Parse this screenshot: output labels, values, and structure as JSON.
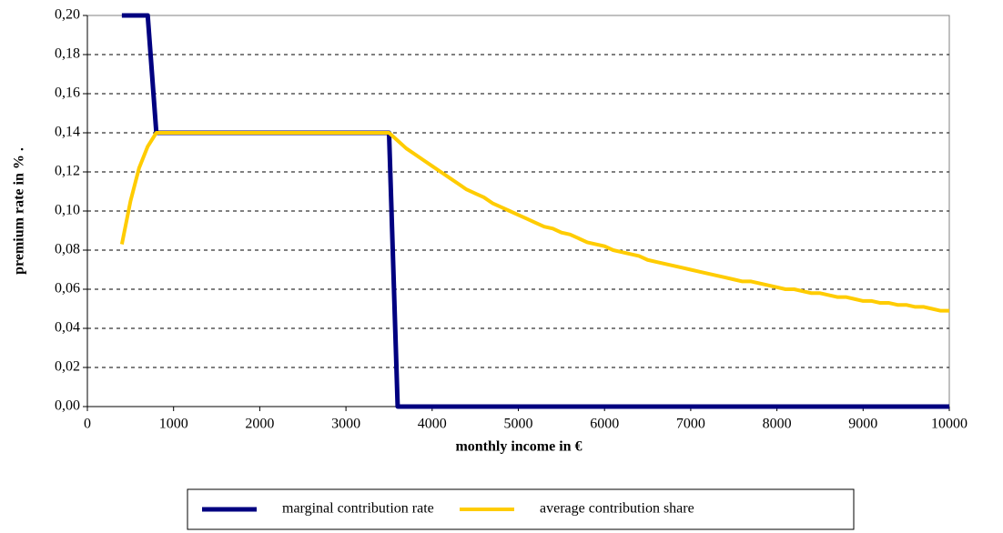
{
  "chart_data": {
    "type": "line",
    "xlabel": "monthly income in €",
    "ylabel": "premium rate in %   .",
    "x": [
      400,
      500,
      600,
      700,
      800,
      900,
      1000,
      1100,
      1200,
      1300,
      1400,
      1500,
      1600,
      1700,
      1800,
      1900,
      2000,
      2100,
      2200,
      2300,
      2400,
      2500,
      2600,
      2700,
      2800,
      2900,
      3000,
      3100,
      3200,
      3300,
      3400,
      3500,
      3600,
      3700,
      3800,
      3900,
      4000,
      4100,
      4200,
      4300,
      4400,
      4500,
      4600,
      4700,
      4800,
      4900,
      5000,
      5100,
      5200,
      5300,
      5400,
      5500,
      5600,
      5700,
      5800,
      5900,
      6000,
      6100,
      6200,
      6300,
      6400,
      6500,
      6600,
      6700,
      6800,
      6900,
      7000,
      7100,
      7200,
      7300,
      7400,
      7500,
      7600,
      7700,
      7800,
      7900,
      8000,
      8100,
      8200,
      8300,
      8400,
      8500,
      8600,
      8700,
      8800,
      8900,
      9000,
      9100,
      9200,
      9300,
      9400,
      9500,
      9600,
      9700,
      9800,
      9900,
      10000
    ],
    "series": [
      {
        "name": "marginal contribution rate",
        "color": "#000080",
        "values": [
          0.2,
          0.2,
          0.2,
          0.2,
          0.14,
          0.14,
          0.14,
          0.14,
          0.14,
          0.14,
          0.14,
          0.14,
          0.14,
          0.14,
          0.14,
          0.14,
          0.14,
          0.14,
          0.14,
          0.14,
          0.14,
          0.14,
          0.14,
          0.14,
          0.14,
          0.14,
          0.14,
          0.14,
          0.14,
          0.14,
          0.14,
          0.14,
          0,
          0,
          0,
          0,
          0,
          0,
          0,
          0,
          0,
          0,
          0,
          0,
          0,
          0,
          0,
          0,
          0,
          0,
          0,
          0,
          0,
          0,
          0,
          0,
          0,
          0,
          0,
          0,
          0,
          0,
          0,
          0,
          0,
          0,
          0,
          0,
          0,
          0,
          0,
          0,
          0,
          0,
          0,
          0,
          0,
          0,
          0,
          0,
          0,
          0,
          0,
          0,
          0,
          0,
          0,
          0,
          0,
          0,
          0,
          0,
          0,
          0,
          0,
          0,
          0
        ]
      },
      {
        "name": "average contribution share",
        "color": "#FFCC00",
        "values": [
          0.083,
          0.105,
          0.122,
          0.133,
          0.14,
          0.14,
          0.14,
          0.14,
          0.14,
          0.14,
          0.14,
          0.14,
          0.14,
          0.14,
          0.14,
          0.14,
          0.14,
          0.14,
          0.14,
          0.14,
          0.14,
          0.14,
          0.14,
          0.14,
          0.14,
          0.14,
          0.14,
          0.14,
          0.14,
          0.14,
          0.14,
          0.14,
          0.136,
          0.132,
          0.129,
          0.126,
          0.123,
          0.12,
          0.117,
          0.114,
          0.111,
          0.109,
          0.107,
          0.104,
          0.102,
          0.1,
          0.098,
          0.096,
          0.094,
          0.092,
          0.091,
          0.089,
          0.088,
          0.086,
          0.084,
          0.083,
          0.082,
          0.08,
          0.079,
          0.078,
          0.077,
          0.075,
          0.074,
          0.073,
          0.072,
          0.071,
          0.07,
          0.069,
          0.068,
          0.067,
          0.066,
          0.065,
          0.064,
          0.064,
          0.063,
          0.062,
          0.061,
          0.06,
          0.06,
          0.059,
          0.058,
          0.058,
          0.057,
          0.056,
          0.056,
          0.055,
          0.054,
          0.054,
          0.053,
          0.053,
          0.052,
          0.052,
          0.051,
          0.051,
          0.05,
          0.049,
          0.049
        ]
      }
    ],
    "xlim": [
      0,
      10000
    ],
    "xticks": [
      0,
      1000,
      2000,
      3000,
      4000,
      5000,
      6000,
      7000,
      8000,
      9000,
      10000
    ],
    "ylim": [
      0,
      0.2
    ],
    "yticks": [
      {
        "value": 0,
        "label": "0,00"
      },
      {
        "value": 0.02,
        "label": "0,02"
      },
      {
        "value": 0.04,
        "label": "0,04"
      },
      {
        "value": 0.06,
        "label": "0,06"
      },
      {
        "value": 0.08,
        "label": "0,08"
      },
      {
        "value": 0.1,
        "label": "0,10"
      },
      {
        "value": 0.12,
        "label": "0,12"
      },
      {
        "value": 0.14,
        "label": "0,14"
      },
      {
        "value": 0.16,
        "label": "0,16"
      },
      {
        "value": 0.18,
        "label": "0,18"
      },
      {
        "value": 0.2,
        "label": "0,20"
      }
    ],
    "grid": true,
    "legend": "bottom"
  }
}
